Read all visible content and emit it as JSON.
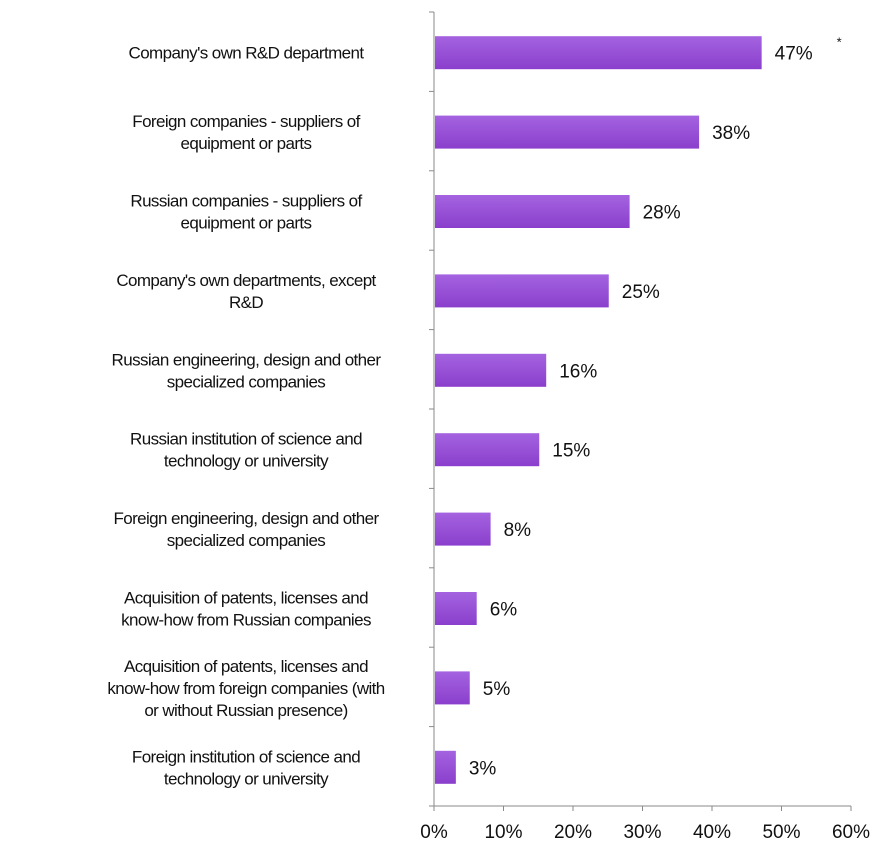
{
  "chart_data": {
    "type": "bar",
    "orientation": "horizontal",
    "categories": [
      [
        "Company's own R&D department"
      ],
      [
        "Foreign companies - suppliers of",
        "equipment or parts"
      ],
      [
        "Russian companies - suppliers of",
        "equipment or parts"
      ],
      [
        "Company's own departments, except",
        "R&D"
      ],
      [
        "Russian engineering, design and other",
        "specialized companies"
      ],
      [
        "Russian institution of science and",
        "technology or university"
      ],
      [
        "Foreign engineering, design and other",
        "specialized companies"
      ],
      [
        "Acquisition of patents, licenses and",
        "know-how from Russian companies"
      ],
      [
        "Acquisition of patents, licenses and",
        "know-how from foreign companies (with",
        "or without Russian presence)"
      ],
      [
        "Foreign institution of science and",
        "technology or university"
      ]
    ],
    "values": [
      47,
      38,
      28,
      25,
      16,
      15,
      8,
      6,
      5,
      3
    ],
    "data_labels": [
      "47%",
      "38%",
      "28%",
      "25%",
      "16%",
      "15%",
      "8%",
      "6%",
      "5%",
      "3%"
    ],
    "annotation": "*",
    "xlim": [
      0,
      60
    ],
    "x_ticks": [
      "0%",
      "10%",
      "20%",
      "30%",
      "40%",
      "50%",
      "60%"
    ],
    "bar_color": "#8a3fcc",
    "bar_highlight": "#a463e0",
    "grid": false,
    "legend": "none"
  }
}
